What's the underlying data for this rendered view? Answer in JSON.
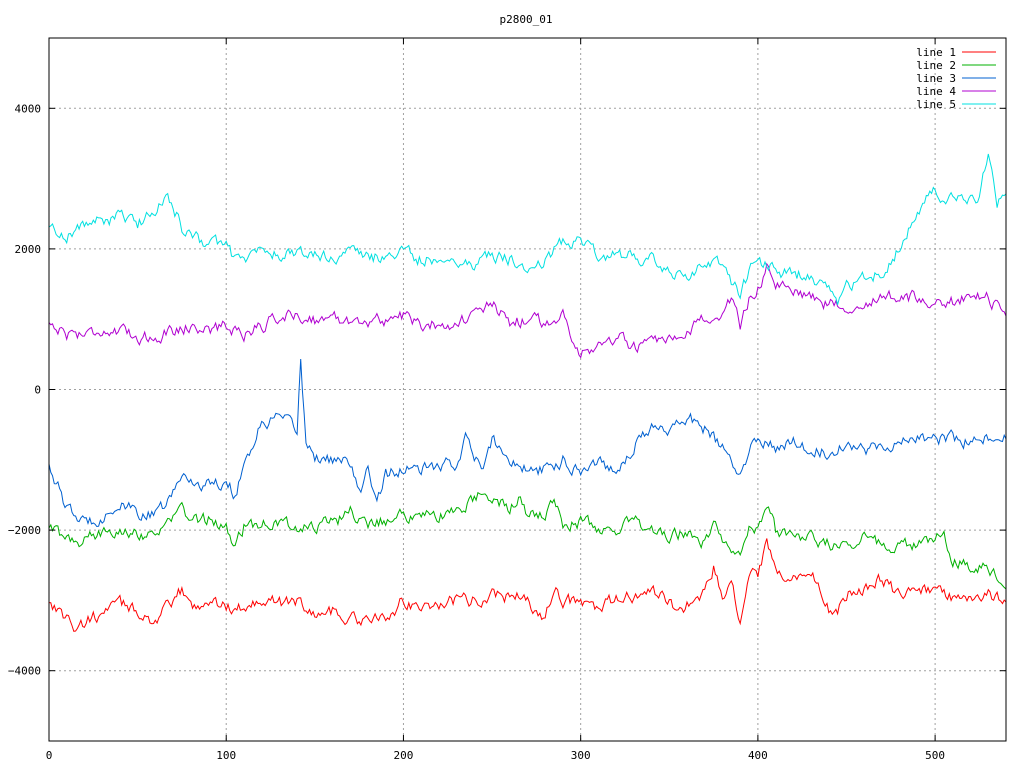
{
  "chart_data": {
    "type": "line",
    "title": "p2800_01",
    "xlim": [
      0,
      540
    ],
    "ylim": [
      -5000,
      5000
    ],
    "xticks": [
      0,
      100,
      200,
      300,
      400,
      500
    ],
    "yticks": [
      -4000,
      -2000,
      0,
      2000,
      4000
    ],
    "grid": true,
    "legend_position": "top-right",
    "series": [
      {
        "name": "line 1",
        "color": "#ff0000",
        "anchors": [
          [
            0,
            -3000
          ],
          [
            10,
            -3250
          ],
          [
            15,
            -3400
          ],
          [
            25,
            -3250
          ],
          [
            30,
            -3200
          ],
          [
            40,
            -3050
          ],
          [
            50,
            -3150
          ],
          [
            60,
            -3300
          ],
          [
            70,
            -3050
          ],
          [
            75,
            -2850
          ],
          [
            80,
            -3100
          ],
          [
            90,
            -3000
          ],
          [
            100,
            -3100
          ],
          [
            110,
            -3100
          ],
          [
            120,
            -2950
          ],
          [
            130,
            -3050
          ],
          [
            140,
            -3000
          ],
          [
            150,
            -3200
          ],
          [
            160,
            -3150
          ],
          [
            170,
            -3250
          ],
          [
            180,
            -3300
          ],
          [
            190,
            -3250
          ],
          [
            200,
            -3000
          ],
          [
            210,
            -3100
          ],
          [
            220,
            -3050
          ],
          [
            230,
            -3000
          ],
          [
            240,
            -3000
          ],
          [
            250,
            -2900
          ],
          [
            260,
            -2950
          ],
          [
            270,
            -2950
          ],
          [
            275,
            -3200
          ],
          [
            280,
            -3300
          ],
          [
            285,
            -2800
          ],
          [
            290,
            -3000
          ],
          [
            300,
            -3050
          ],
          [
            310,
            -3100
          ],
          [
            320,
            -3000
          ],
          [
            330,
            -2950
          ],
          [
            340,
            -2900
          ],
          [
            350,
            -3000
          ],
          [
            355,
            -3200
          ],
          [
            360,
            -3050
          ],
          [
            370,
            -2900
          ],
          [
            375,
            -2550
          ],
          [
            380,
            -2950
          ],
          [
            385,
            -2850
          ],
          [
            390,
            -3250
          ],
          [
            395,
            -2700
          ],
          [
            400,
            -2650
          ],
          [
            405,
            -2200
          ],
          [
            410,
            -2650
          ],
          [
            420,
            -2700
          ],
          [
            430,
            -2600
          ],
          [
            440,
            -3100
          ],
          [
            445,
            -3200
          ],
          [
            450,
            -2900
          ],
          [
            460,
            -2800
          ],
          [
            470,
            -2700
          ],
          [
            480,
            -2950
          ],
          [
            490,
            -2850
          ],
          [
            500,
            -2850
          ],
          [
            510,
            -2950
          ],
          [
            520,
            -2950
          ],
          [
            530,
            -2900
          ],
          [
            540,
            -3050
          ]
        ]
      },
      {
        "name": "line 2",
        "color": "#00b000",
        "anchors": [
          [
            0,
            -1950
          ],
          [
            10,
            -2150
          ],
          [
            20,
            -2150
          ],
          [
            30,
            -2050
          ],
          [
            40,
            -1950
          ],
          [
            50,
            -2050
          ],
          [
            60,
            -2050
          ],
          [
            70,
            -1850
          ],
          [
            75,
            -1650
          ],
          [
            80,
            -1900
          ],
          [
            90,
            -1850
          ],
          [
            100,
            -1950
          ],
          [
            105,
            -2200
          ],
          [
            110,
            -1950
          ],
          [
            120,
            -1900
          ],
          [
            130,
            -1900
          ],
          [
            140,
            -1950
          ],
          [
            150,
            -1950
          ],
          [
            160,
            -1900
          ],
          [
            170,
            -1750
          ],
          [
            180,
            -1900
          ],
          [
            190,
            -1850
          ],
          [
            200,
            -1800
          ],
          [
            210,
            -1800
          ],
          [
            220,
            -1800
          ],
          [
            230,
            -1700
          ],
          [
            240,
            -1600
          ],
          [
            245,
            -1400
          ],
          [
            250,
            -1550
          ],
          [
            260,
            -1700
          ],
          [
            265,
            -1550
          ],
          [
            270,
            -1800
          ],
          [
            280,
            -1800
          ],
          [
            285,
            -1600
          ],
          [
            290,
            -1900
          ],
          [
            300,
            -1900
          ],
          [
            310,
            -1950
          ],
          [
            320,
            -2000
          ],
          [
            330,
            -1850
          ],
          [
            340,
            -2000
          ],
          [
            350,
            -2100
          ],
          [
            360,
            -2050
          ],
          [
            370,
            -2200
          ],
          [
            375,
            -1850
          ],
          [
            380,
            -2100
          ],
          [
            390,
            -2400
          ],
          [
            395,
            -1950
          ],
          [
            400,
            -2000
          ],
          [
            405,
            -1600
          ],
          [
            410,
            -2000
          ],
          [
            420,
            -2050
          ],
          [
            430,
            -2100
          ],
          [
            440,
            -2200
          ],
          [
            450,
            -2250
          ],
          [
            460,
            -2050
          ],
          [
            470,
            -2200
          ],
          [
            480,
            -2200
          ],
          [
            490,
            -2250
          ],
          [
            500,
            -2150
          ],
          [
            505,
            -2050
          ],
          [
            510,
            -2400
          ],
          [
            520,
            -2500
          ],
          [
            530,
            -2500
          ],
          [
            540,
            -2800
          ]
        ]
      },
      {
        "name": "line 3",
        "color": "#0060d0",
        "anchors": [
          [
            0,
            -1050
          ],
          [
            10,
            -1700
          ],
          [
            20,
            -1900
          ],
          [
            30,
            -1800
          ],
          [
            40,
            -1650
          ],
          [
            50,
            -1750
          ],
          [
            60,
            -1800
          ],
          [
            70,
            -1500
          ],
          [
            75,
            -1200
          ],
          [
            80,
            -1300
          ],
          [
            90,
            -1350
          ],
          [
            100,
            -1300
          ],
          [
            105,
            -1500
          ],
          [
            110,
            -1050
          ],
          [
            120,
            -500
          ],
          [
            130,
            -400
          ],
          [
            135,
            -500
          ],
          [
            140,
            -600
          ],
          [
            142,
            450
          ],
          [
            145,
            -750
          ],
          [
            150,
            -950
          ],
          [
            160,
            -1000
          ],
          [
            170,
            -1050
          ],
          [
            175,
            -1500
          ],
          [
            180,
            -1150
          ],
          [
            185,
            -1550
          ],
          [
            190,
            -1200
          ],
          [
            200,
            -1150
          ],
          [
            210,
            -1150
          ],
          [
            220,
            -1100
          ],
          [
            230,
            -1050
          ],
          [
            235,
            -650
          ],
          [
            240,
            -1000
          ],
          [
            245,
            -1150
          ],
          [
            250,
            -700
          ],
          [
            260,
            -1000
          ],
          [
            270,
            -1150
          ],
          [
            280,
            -1150
          ],
          [
            290,
            -1000
          ],
          [
            300,
            -1150
          ],
          [
            310,
            -1000
          ],
          [
            320,
            -1150
          ],
          [
            330,
            -800
          ],
          [
            340,
            -550
          ],
          [
            350,
            -550
          ],
          [
            360,
            -400
          ],
          [
            370,
            -550
          ],
          [
            380,
            -850
          ],
          [
            390,
            -1250
          ],
          [
            400,
            -650
          ],
          [
            410,
            -850
          ],
          [
            420,
            -700
          ],
          [
            430,
            -850
          ],
          [
            440,
            -900
          ],
          [
            450,
            -750
          ],
          [
            460,
            -850
          ],
          [
            470,
            -800
          ],
          [
            480,
            -750
          ],
          [
            490,
            -700
          ],
          [
            500,
            -700
          ],
          [
            510,
            -700
          ],
          [
            520,
            -750
          ],
          [
            530,
            -700
          ],
          [
            540,
            -700
          ]
        ]
      },
      {
        "name": "line 4",
        "color": "#b000d0",
        "anchors": [
          [
            0,
            950
          ],
          [
            10,
            800
          ],
          [
            20,
            800
          ],
          [
            30,
            850
          ],
          [
            40,
            800
          ],
          [
            50,
            750
          ],
          [
            60,
            750
          ],
          [
            70,
            850
          ],
          [
            80,
            900
          ],
          [
            90,
            850
          ],
          [
            100,
            900
          ],
          [
            110,
            800
          ],
          [
            120,
            900
          ],
          [
            130,
            1050
          ],
          [
            140,
            1050
          ],
          [
            150,
            1000
          ],
          [
            160,
            1000
          ],
          [
            170,
            1000
          ],
          [
            180,
            950
          ],
          [
            190,
            1000
          ],
          [
            200,
            1050
          ],
          [
            210,
            900
          ],
          [
            220,
            950
          ],
          [
            230,
            950
          ],
          [
            240,
            1050
          ],
          [
            250,
            1200
          ],
          [
            260,
            950
          ],
          [
            270,
            1000
          ],
          [
            280,
            950
          ],
          [
            290,
            1050
          ],
          [
            300,
            550
          ],
          [
            310,
            600
          ],
          [
            320,
            750
          ],
          [
            330,
            600
          ],
          [
            340,
            650
          ],
          [
            350,
            650
          ],
          [
            360,
            750
          ],
          [
            370,
            1050
          ],
          [
            380,
            1050
          ],
          [
            385,
            1250
          ],
          [
            390,
            900
          ],
          [
            395,
            1300
          ],
          [
            400,
            1450
          ],
          [
            405,
            1750
          ],
          [
            410,
            1450
          ],
          [
            420,
            1400
          ],
          [
            430,
            1350
          ],
          [
            440,
            1200
          ],
          [
            450,
            1200
          ],
          [
            460,
            1250
          ],
          [
            470,
            1300
          ],
          [
            480,
            1300
          ],
          [
            490,
            1300
          ],
          [
            500,
            1250
          ],
          [
            510,
            1250
          ],
          [
            520,
            1300
          ],
          [
            530,
            1300
          ],
          [
            540,
            1100
          ]
        ]
      },
      {
        "name": "line 5",
        "color": "#00e0e0",
        "anchors": [
          [
            0,
            2300
          ],
          [
            10,
            2200
          ],
          [
            20,
            2350
          ],
          [
            30,
            2400
          ],
          [
            40,
            2450
          ],
          [
            50,
            2350
          ],
          [
            60,
            2550
          ],
          [
            65,
            2750
          ],
          [
            70,
            2650
          ],
          [
            75,
            2300
          ],
          [
            80,
            2150
          ],
          [
            90,
            2100
          ],
          [
            100,
            2050
          ],
          [
            105,
            1850
          ],
          [
            110,
            1850
          ],
          [
            120,
            2000
          ],
          [
            130,
            1900
          ],
          [
            140,
            1950
          ],
          [
            150,
            1900
          ],
          [
            160,
            1900
          ],
          [
            170,
            1950
          ],
          [
            180,
            1850
          ],
          [
            190,
            1900
          ],
          [
            200,
            1950
          ],
          [
            210,
            1850
          ],
          [
            220,
            1850
          ],
          [
            230,
            1850
          ],
          [
            240,
            1800
          ],
          [
            250,
            1900
          ],
          [
            260,
            1850
          ],
          [
            270,
            1700
          ],
          [
            280,
            1850
          ],
          [
            290,
            2100
          ],
          [
            300,
            2150
          ],
          [
            310,
            1950
          ],
          [
            320,
            1900
          ],
          [
            330,
            1900
          ],
          [
            340,
            1850
          ],
          [
            350,
            1650
          ],
          [
            360,
            1550
          ],
          [
            370,
            1850
          ],
          [
            380,
            1750
          ],
          [
            390,
            1350
          ],
          [
            395,
            1650
          ],
          [
            400,
            1850
          ],
          [
            410,
            1700
          ],
          [
            420,
            1650
          ],
          [
            430,
            1600
          ],
          [
            440,
            1400
          ],
          [
            445,
            1250
          ],
          [
            450,
            1450
          ],
          [
            460,
            1600
          ],
          [
            470,
            1650
          ],
          [
            480,
            2000
          ],
          [
            490,
            2600
          ],
          [
            500,
            2800
          ],
          [
            510,
            2700
          ],
          [
            520,
            2650
          ],
          [
            525,
            2700
          ],
          [
            530,
            3400
          ],
          [
            535,
            2700
          ],
          [
            540,
            2900
          ]
        ]
      }
    ]
  }
}
